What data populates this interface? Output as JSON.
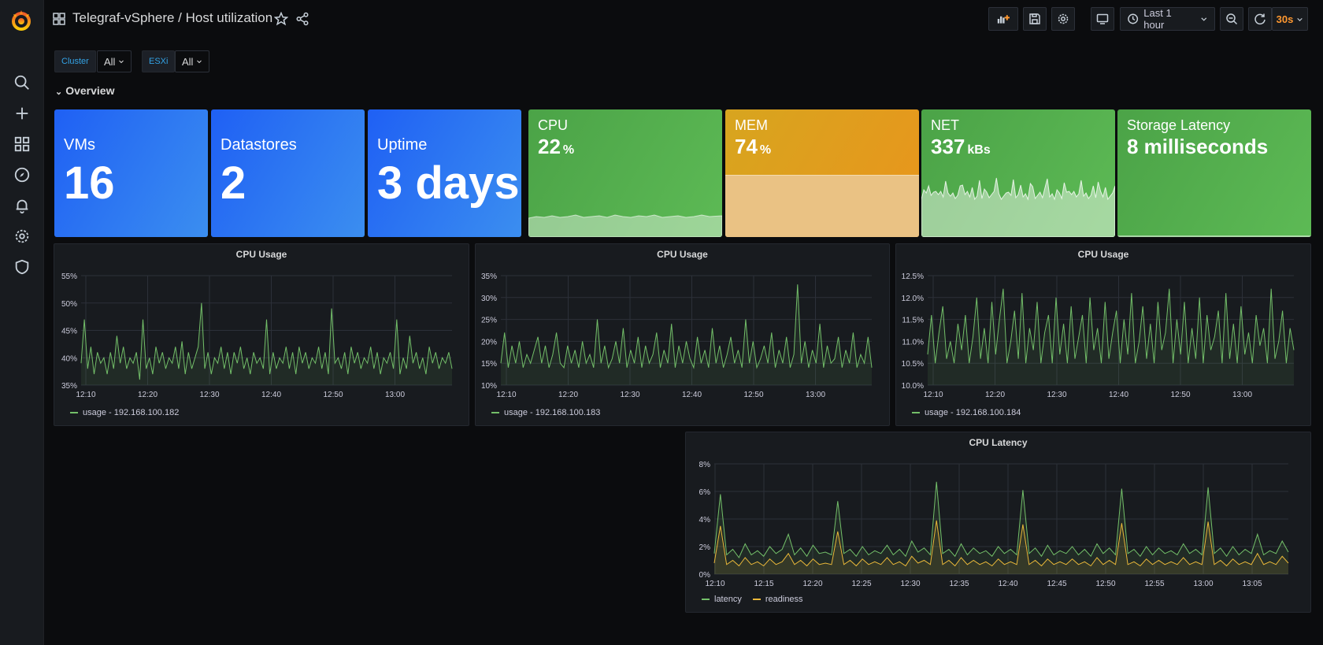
{
  "app": {
    "title": "Telegraf-vSphere / Host utilization",
    "refresh_interval": "30s",
    "time_range": "Last 1 hour"
  },
  "sidebar": {
    "icons": [
      "grafana-logo-icon",
      "search-icon",
      "plus-icon",
      "dashboards-icon",
      "explore-icon",
      "bell-icon",
      "gear-icon",
      "shield-icon"
    ]
  },
  "toolbar": {
    "icons": [
      "add-panel-icon",
      "save-icon",
      "settings-icon",
      "tv-icon",
      "clock-icon",
      "zoom-out-icon",
      "refresh-icon"
    ]
  },
  "variables": [
    {
      "label": "Cluster",
      "value": "All"
    },
    {
      "label": "ESXi",
      "value": "All"
    }
  ],
  "row": {
    "title": "Overview"
  },
  "stats": [
    {
      "label": "VMs",
      "value": "16",
      "unit": "",
      "color": "#1f60f4"
    },
    {
      "label": "Datastores",
      "value": "2",
      "unit": "",
      "color": "#1f60f4"
    },
    {
      "label": "Uptime",
      "value": "3 days",
      "unit": "",
      "color": "#1f60f4"
    },
    {
      "label": "CPU",
      "value": "22",
      "unit": "%",
      "color": "#4ba347"
    },
    {
      "label": "MEM",
      "value": "74",
      "unit": "%",
      "color": "#e1a21d"
    },
    {
      "label": "NET",
      "value": "337",
      "unit": "kBs",
      "color": "#4ba347"
    },
    {
      "label": "Storage Latency",
      "value": "8 milliseconds",
      "unit": "",
      "color": "#4ba347"
    }
  ],
  "chart_data": [
    {
      "type": "line",
      "title": "CPU Usage",
      "x_ticks": [
        "12:10",
        "12:20",
        "12:30",
        "12:40",
        "12:50",
        "13:00"
      ],
      "y_ticks": [
        "35%",
        "40%",
        "45%",
        "50%",
        "55%"
      ],
      "ylim": [
        35,
        55
      ],
      "series": [
        {
          "name": "usage - 192.168.100.182",
          "color": "#73bf69",
          "values": [
            39,
            47,
            38,
            42,
            37,
            41,
            39,
            40,
            37,
            41,
            38,
            44,
            39,
            42,
            38,
            40,
            39,
            41,
            36,
            47,
            38,
            40,
            37,
            42,
            39,
            41,
            38,
            40,
            39,
            42,
            38,
            43,
            37,
            41,
            38,
            40,
            42,
            50,
            38,
            41,
            37,
            40,
            39,
            42,
            38,
            41,
            37,
            41,
            39,
            42,
            38,
            40,
            37,
            41,
            39,
            40,
            38,
            47,
            37,
            41,
            38,
            40,
            39,
            42,
            38,
            41,
            37,
            42,
            39,
            41,
            38,
            40,
            39,
            42,
            38,
            41,
            37,
            49,
            39,
            40,
            38,
            41,
            37,
            42,
            39,
            41,
            38,
            40,
            39,
            42,
            38,
            41,
            37,
            40,
            39,
            41,
            38,
            47,
            37,
            40,
            38,
            44,
            39,
            41,
            38,
            40,
            37,
            42,
            39,
            41,
            38,
            40,
            39,
            41,
            38
          ]
        }
      ],
      "grid": true
    },
    {
      "type": "line",
      "title": "CPU Usage",
      "x_ticks": [
        "12:10",
        "12:20",
        "12:30",
        "12:40",
        "12:50",
        "13:00"
      ],
      "y_ticks": [
        "10%",
        "15%",
        "20%",
        "25%",
        "30%",
        "35%"
      ],
      "ylim": [
        10,
        35
      ],
      "series": [
        {
          "name": "usage - 192.168.100.183",
          "color": "#73bf69",
          "values": [
            15,
            22,
            14,
            19,
            15,
            20,
            14,
            17,
            15,
            18,
            21,
            15,
            19,
            14,
            17,
            22,
            15,
            14,
            19,
            15,
            18,
            14,
            20,
            15,
            17,
            14,
            25,
            15,
            19,
            14,
            16,
            20,
            15,
            23,
            14,
            18,
            15,
            21,
            14,
            19,
            15,
            17,
            22,
            14,
            18,
            15,
            24,
            14,
            19,
            15,
            20,
            16,
            14,
            21,
            15,
            18,
            14,
            23,
            15,
            19,
            14,
            17,
            21,
            15,
            18,
            14,
            25,
            15,
            20,
            14,
            16,
            19,
            15,
            22,
            14,
            18,
            15,
            21,
            14,
            17,
            33,
            15,
            20,
            14,
            18,
            15,
            24,
            14,
            19,
            15,
            16,
            21,
            14,
            18,
            15,
            22,
            14,
            17,
            15,
            21,
            14
          ]
        }
      ],
      "grid": true
    },
    {
      "type": "line",
      "title": "CPU Usage",
      "x_ticks": [
        "12:10",
        "12:20",
        "12:30",
        "12:40",
        "12:50",
        "13:00"
      ],
      "y_ticks": [
        "10.0%",
        "10.5%",
        "11.0%",
        "11.5%",
        "12.0%",
        "12.5%"
      ],
      "ylim": [
        10,
        12.5
      ],
      "series": [
        {
          "name": "usage - 192.168.100.184",
          "color": "#73bf69",
          "values": [
            10.7,
            11.6,
            10.5,
            11.2,
            11.8,
            10.6,
            11.0,
            10.5,
            11.4,
            10.8,
            11.6,
            10.5,
            11.1,
            12.0,
            10.6,
            11.3,
            10.5,
            11.9,
            10.7,
            11.5,
            12.2,
            10.5,
            11.0,
            11.7,
            10.6,
            12.1,
            10.5,
            11.3,
            10.8,
            11.9,
            10.5,
            11.2,
            11.6,
            10.5,
            12.0,
            10.7,
            11.4,
            10.5,
            11.8,
            10.6,
            11.1,
            11.6,
            10.5,
            12.0,
            10.8,
            11.3,
            10.5,
            11.9,
            10.6,
            11.2,
            11.7,
            10.5,
            11.5,
            10.7,
            12.1,
            10.5,
            11.0,
            11.8,
            10.6,
            11.4,
            10.5,
            11.9,
            10.8,
            11.2,
            12.2,
            10.5,
            11.5,
            10.7,
            11.9,
            10.5,
            11.3,
            10.6,
            12.0,
            10.5,
            11.6,
            10.8,
            11.1,
            11.7,
            10.5,
            12.1,
            10.6,
            11.4,
            10.5,
            11.8,
            10.7,
            11.2,
            10.5,
            11.6,
            10.9,
            11.3,
            10.5,
            12.2,
            10.6,
            11.0,
            11.7,
            10.5,
            11.3,
            10.8
          ]
        }
      ],
      "grid": true
    },
    {
      "type": "line",
      "title": "CPU Latency",
      "x_ticks": [
        "12:10",
        "12:15",
        "12:20",
        "12:25",
        "12:30",
        "12:35",
        "12:40",
        "12:45",
        "12:50",
        "12:55",
        "13:00",
        "13:05"
      ],
      "y_ticks": [
        "0%",
        "2%",
        "4%",
        "6%",
        "8%"
      ],
      "ylim": [
        0,
        8
      ],
      "series": [
        {
          "name": "latency",
          "color": "#73bf69",
          "values": [
            1.5,
            5.8,
            1.4,
            1.8,
            1.2,
            2.2,
            1.4,
            1.7,
            1.3,
            2.0,
            1.5,
            1.8,
            2.9,
            1.4,
            1.9,
            1.3,
            2.1,
            1.5,
            1.6,
            1.4,
            5.3,
            1.5,
            1.8,
            1.3,
            2.0,
            1.4,
            1.7,
            1.5,
            2.1,
            1.4,
            1.8,
            1.3,
            2.4,
            1.6,
            1.9,
            1.4,
            6.7,
            1.5,
            1.8,
            1.3,
            2.2,
            1.4,
            1.9,
            1.5,
            1.7,
            1.3,
            2.0,
            1.5,
            1.8,
            1.4,
            6.1,
            1.5,
            1.9,
            1.3,
            2.1,
            1.4,
            1.7,
            1.5,
            2.0,
            1.4,
            1.8,
            1.3,
            2.2,
            1.5,
            1.9,
            1.4,
            6.2,
            1.5,
            1.8,
            1.3,
            2.0,
            1.4,
            1.9,
            1.5,
            1.7,
            1.4,
            2.2,
            1.5,
            1.8,
            1.4,
            6.3,
            1.5,
            1.9,
            1.3,
            2.0,
            1.4,
            1.8,
            1.5,
            2.9,
            1.4,
            1.7,
            1.5,
            2.4,
            1.6
          ]
        },
        {
          "name": "readiness",
          "color": "#eab839",
          "values": [
            0.8,
            3.5,
            0.7,
            1.0,
            0.6,
            1.2,
            0.7,
            0.9,
            0.6,
            1.1,
            0.7,
            0.9,
            1.5,
            0.7,
            1.0,
            0.6,
            1.1,
            0.7,
            0.8,
            0.7,
            3.1,
            0.7,
            1.0,
            0.6,
            1.1,
            0.7,
            0.9,
            0.7,
            1.2,
            0.7,
            0.9,
            0.6,
            1.3,
            0.8,
            1.0,
            0.7,
            3.9,
            0.7,
            1.0,
            0.6,
            1.2,
            0.7,
            1.0,
            0.7,
            0.9,
            0.6,
            1.1,
            0.7,
            0.9,
            0.7,
            3.6,
            0.7,
            1.0,
            0.6,
            1.1,
            0.7,
            0.9,
            0.7,
            1.1,
            0.7,
            0.9,
            0.6,
            1.2,
            0.7,
            1.0,
            0.7,
            3.7,
            0.7,
            0.9,
            0.6,
            1.1,
            0.7,
            1.0,
            0.7,
            0.9,
            0.7,
            1.2,
            0.7,
            0.9,
            0.7,
            3.8,
            0.7,
            1.0,
            0.6,
            1.1,
            0.7,
            0.9,
            0.7,
            1.5,
            0.7,
            0.9,
            0.7,
            1.3,
            0.8
          ]
        }
      ],
      "grid": true
    }
  ]
}
